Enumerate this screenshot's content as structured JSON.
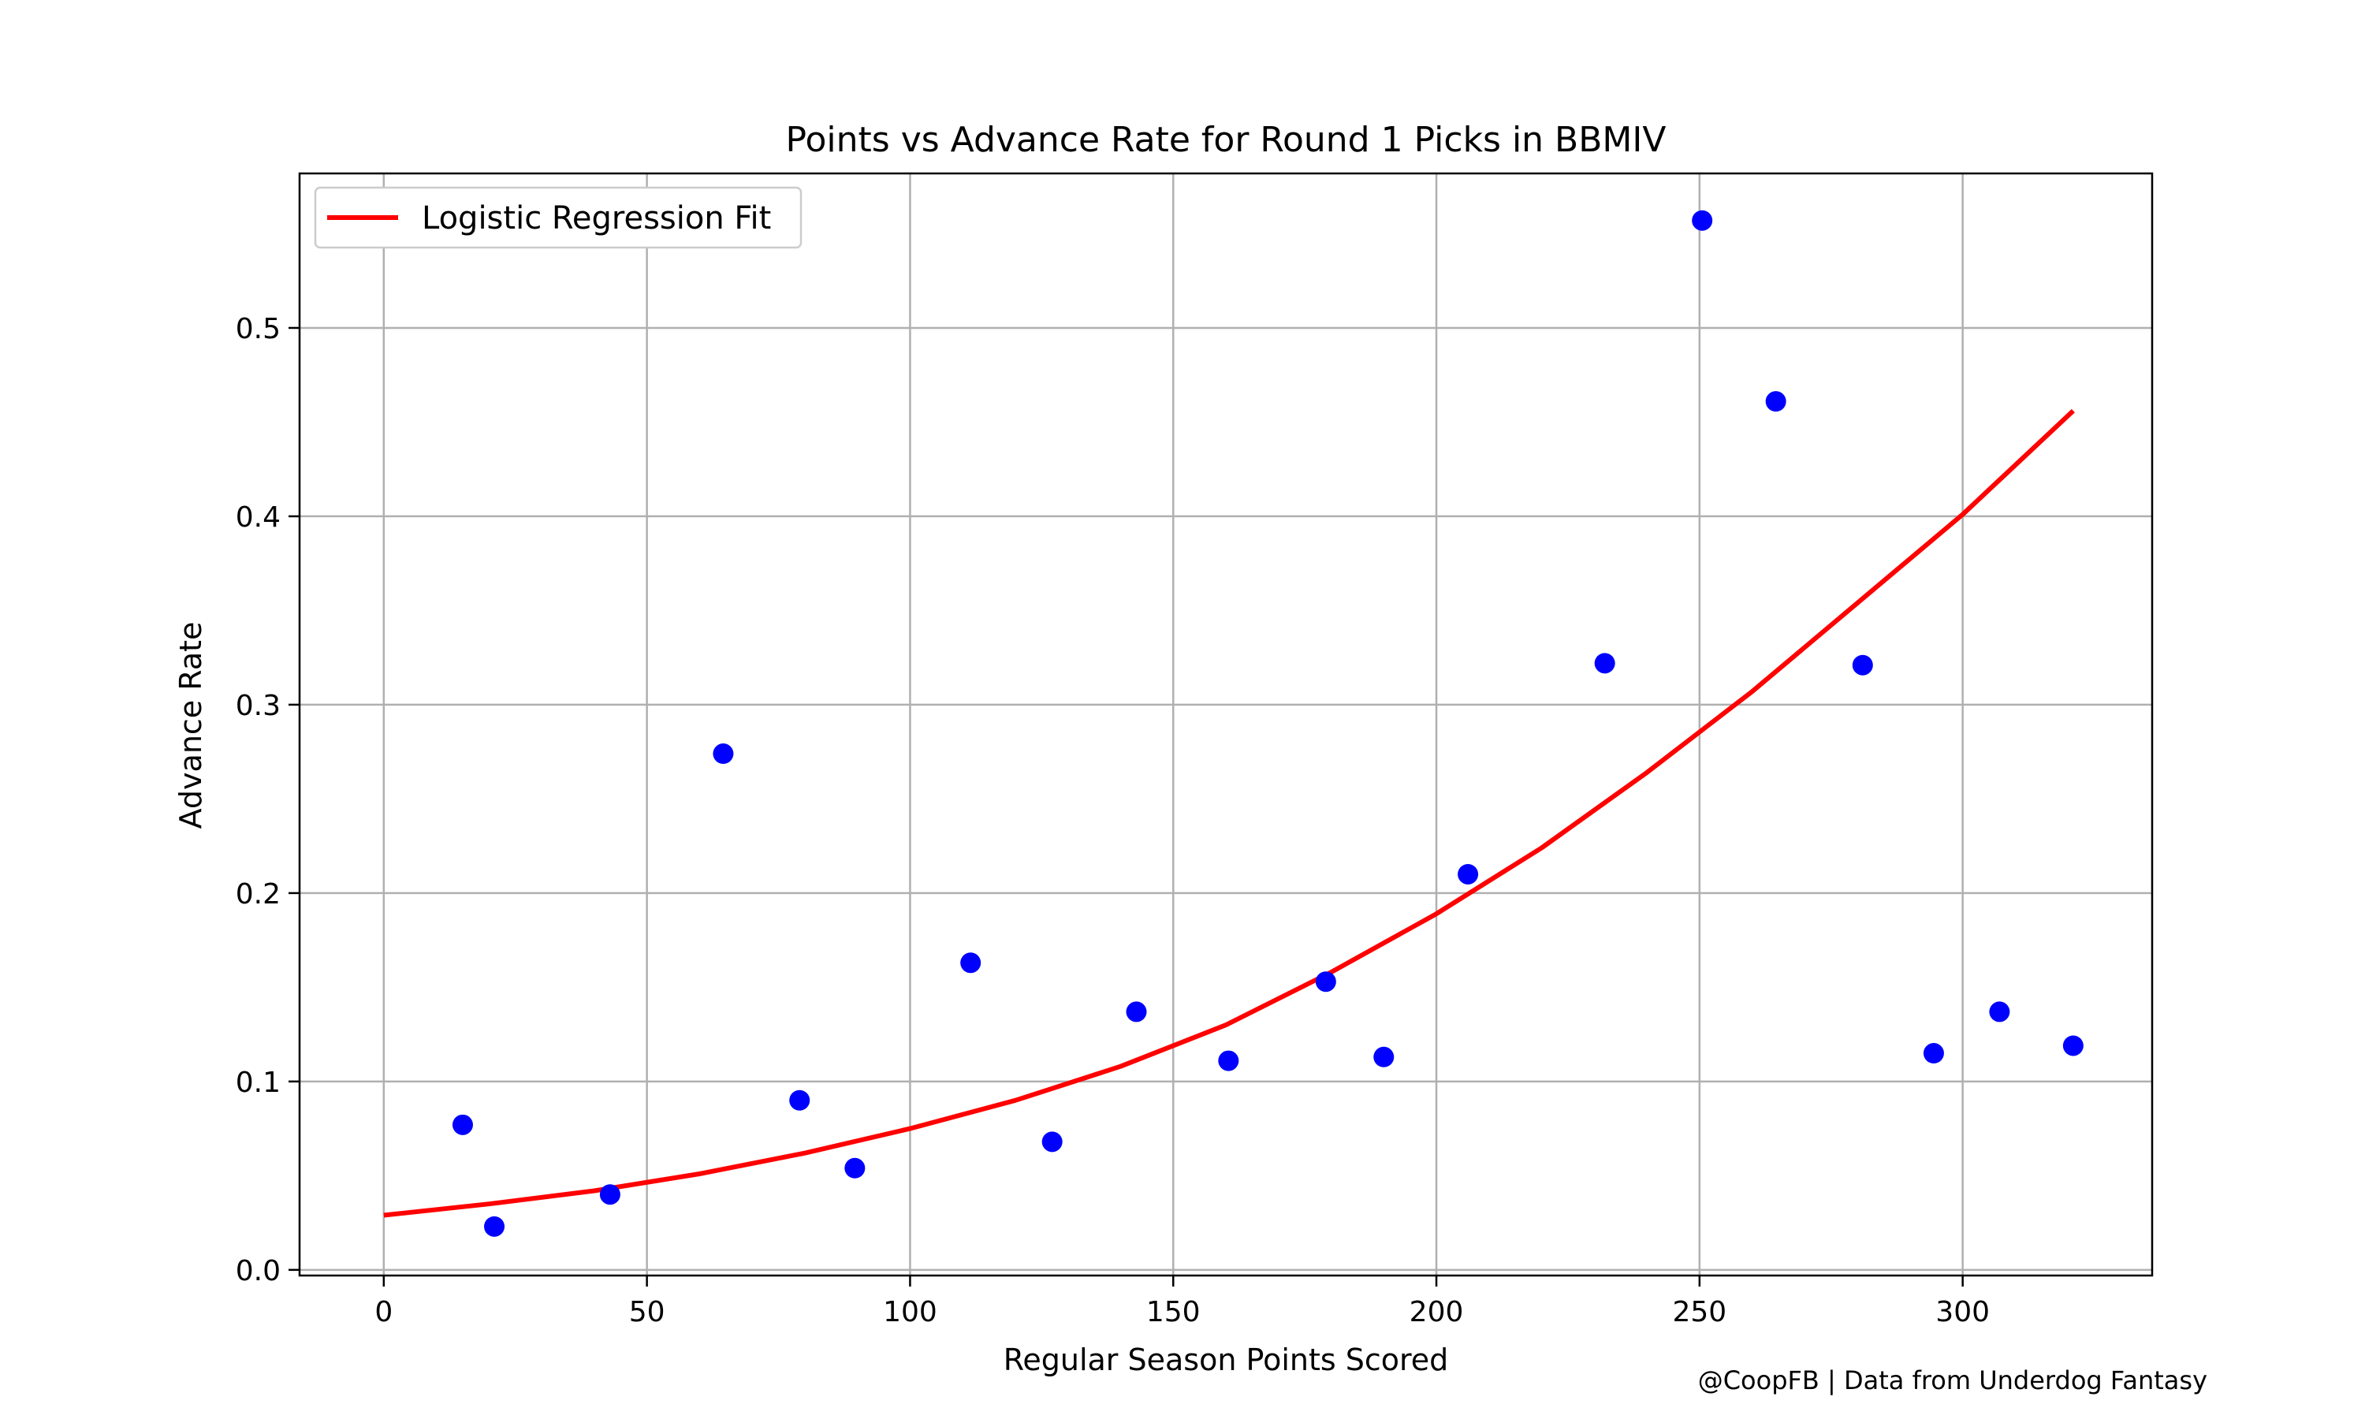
{
  "chart_data": {
    "type": "scatter",
    "title": "Points vs Advance Rate for Round 1 Picks in BBMIV",
    "xlabel": "Regular Season Points Scored",
    "ylabel": "Advance Rate",
    "xlim": [
      -16,
      336
    ],
    "ylim": [
      -0.003,
      0.582
    ],
    "xticks": [
      0,
      50,
      100,
      150,
      200,
      250,
      300
    ],
    "yticks": [
      0.0,
      0.1,
      0.2,
      0.3,
      0.4,
      0.5
    ],
    "xtick_labels": [
      "0",
      "50",
      "100",
      "150",
      "200",
      "250",
      "300"
    ],
    "ytick_labels": [
      "0.0",
      "0.1",
      "0.2",
      "0.3",
      "0.4",
      "0.5"
    ],
    "grid": true,
    "legend_position": "top-left",
    "series": [
      {
        "kind": "scatter",
        "color": "#0000ff",
        "points": [
          {
            "x": 15,
            "y": 0.077
          },
          {
            "x": 21,
            "y": 0.023
          },
          {
            "x": 43,
            "y": 0.04
          },
          {
            "x": 64.5,
            "y": 0.274
          },
          {
            "x": 79,
            "y": 0.09
          },
          {
            "x": 89.5,
            "y": 0.054
          },
          {
            "x": 111.5,
            "y": 0.163
          },
          {
            "x": 127,
            "y": 0.068
          },
          {
            "x": 143,
            "y": 0.137
          },
          {
            "x": 160.5,
            "y": 0.111
          },
          {
            "x": 179,
            "y": 0.153
          },
          {
            "x": 190,
            "y": 0.113
          },
          {
            "x": 206,
            "y": 0.21
          },
          {
            "x": 232,
            "y": 0.322
          },
          {
            "x": 250.5,
            "y": 0.557
          },
          {
            "x": 264.5,
            "y": 0.461
          },
          {
            "x": 281,
            "y": 0.321
          },
          {
            "x": 294.5,
            "y": 0.115
          },
          {
            "x": 307,
            "y": 0.137
          },
          {
            "x": 321,
            "y": 0.119
          }
        ]
      },
      {
        "kind": "line",
        "name": "Logistic Regression Fit",
        "color": "#ff0000",
        "x": [
          0,
          20,
          40,
          60,
          80,
          100,
          120,
          140,
          160,
          180,
          200,
          220,
          240,
          260,
          280,
          300,
          321
        ],
        "y": [
          0.029,
          0.035,
          0.042,
          0.051,
          0.062,
          0.075,
          0.09,
          0.108,
          0.13,
          0.158,
          0.189,
          0.224,
          0.264,
          0.307,
          0.354,
          0.401,
          0.456
        ]
      }
    ]
  },
  "credit": "@CoopFB | Data from Underdog Fantasy"
}
